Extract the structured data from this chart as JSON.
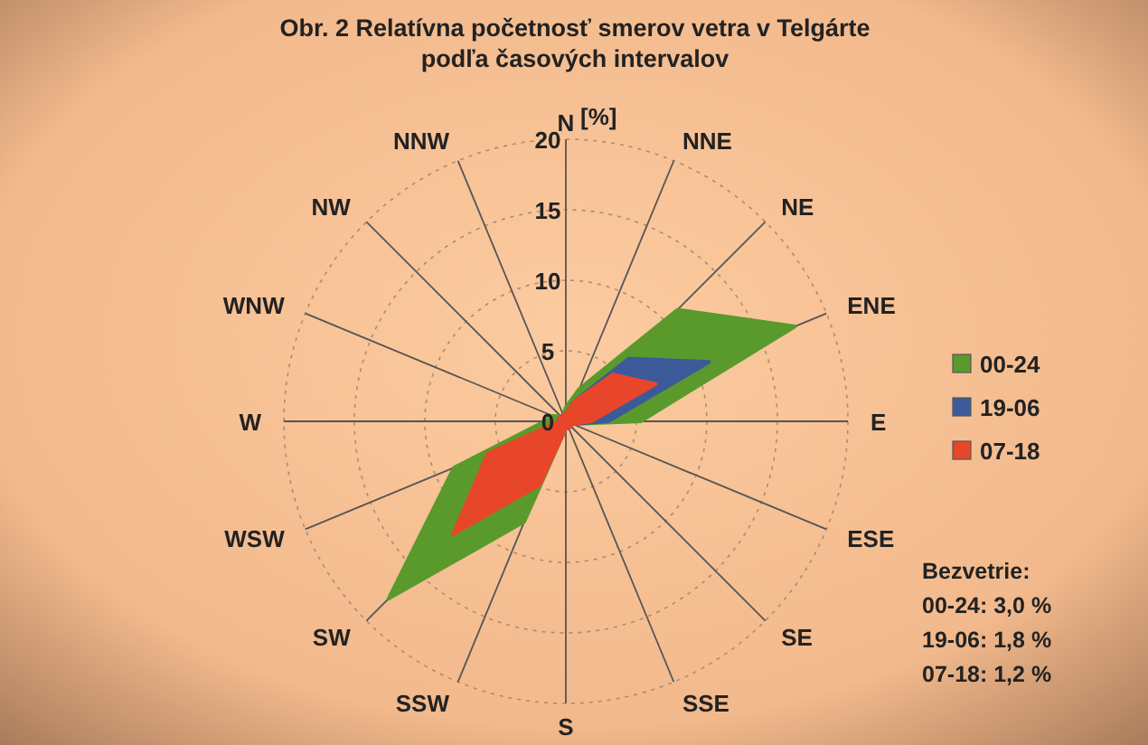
{
  "chart_data": {
    "type": "radar",
    "title": "Obr. 2  Relatívna početnosť smerov vetra v Telgárte\npodľa časových intervalov",
    "ylabel": "[%]",
    "categories": [
      "N",
      "NNE",
      "NE",
      "ENE",
      "E",
      "ESE",
      "SE",
      "SSE",
      "S",
      "SSW",
      "SW",
      "WSW",
      "W",
      "WNW",
      "NW",
      "NNW"
    ],
    "series": [
      {
        "name": "00-24",
        "color": "#5a9a2c",
        "values": [
          1,
          2.5,
          11.2,
          17.6,
          5.3,
          0.5,
          0.5,
          0.5,
          0.5,
          7.7,
          17.8,
          8.6,
          1.5,
          1,
          0.5,
          0.5
        ]
      },
      {
        "name": "19-06",
        "color": "#3c5a9a",
        "values": [
          0.5,
          1.5,
          6.3,
          11,
          3,
          0.5,
          0.5,
          0.5,
          0.5,
          1.5,
          6.2,
          1.5,
          0.5,
          0.5,
          0.5,
          0.5
        ]
      },
      {
        "name": "07-18",
        "color": "#e8462a",
        "values": [
          0.5,
          1.5,
          4.7,
          6.9,
          1.8,
          0.5,
          0.5,
          0.5,
          0.5,
          4.9,
          11.3,
          6,
          0.5,
          0.5,
          0.5,
          0.5
        ]
      }
    ],
    "ylim": [
      0,
      20
    ],
    "yticks": [
      0,
      5,
      10,
      15,
      20
    ],
    "grid": true,
    "legend": "right",
    "annotations": [
      "Bezvetrie:",
      "00-24: 3,0 %",
      "19-06: 1,8 %",
      "07-18: 1,2 %"
    ]
  }
}
